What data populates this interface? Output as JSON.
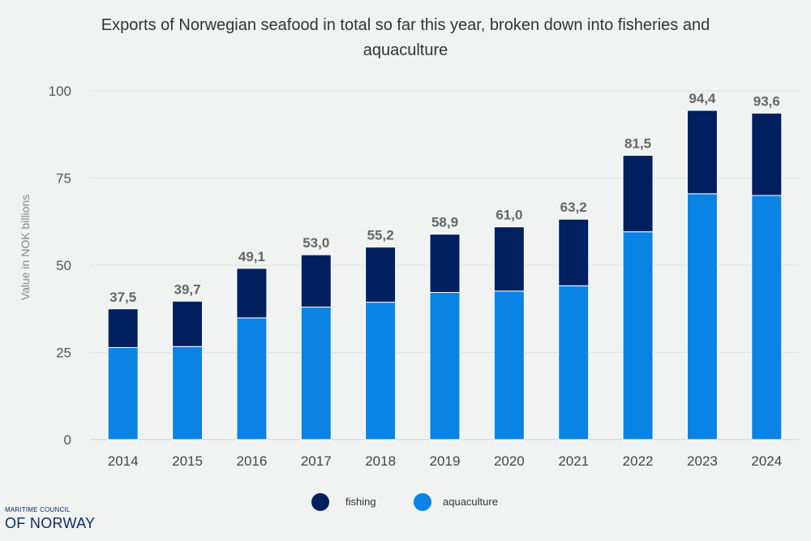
{
  "chart_data": {
    "type": "bar",
    "stacked": true,
    "title": "Exports of Norwegian seafood in total so far this year, broken down into fisheries and aquaculture",
    "ylabel": "Value in NOK billions",
    "xlabel": "",
    "ylim": [
      0,
      100
    ],
    "yticks": [
      0,
      25,
      50,
      75,
      100
    ],
    "grid": true,
    "legend": "bottom",
    "categories": [
      "2014",
      "2015",
      "2016",
      "2017",
      "2018",
      "2019",
      "2020",
      "2021",
      "2022",
      "2023",
      "2024"
    ],
    "series": [
      {
        "name": "aquaculture",
        "color": "#0a84e4",
        "values": [
          26.4,
          26.7,
          34.9,
          38.0,
          39.4,
          42.2,
          42.6,
          44.1,
          59.6,
          70.5,
          70.0
        ]
      },
      {
        "name": "fishing",
        "color": "#00205f",
        "values": [
          11.1,
          13.0,
          14.2,
          15.0,
          15.8,
          16.7,
          18.4,
          19.1,
          21.9,
          23.9,
          23.6
        ]
      }
    ],
    "total_labels": [
      "37,5",
      "39,7",
      "49,1",
      "53,0",
      "55,2",
      "58,9",
      "61,0",
      "63,2",
      "81,5",
      "94,4",
      "93,6"
    ]
  },
  "legend": {
    "fishing_label": "fishing",
    "aquaculture_label": "aquaculture"
  },
  "logo": {
    "line1": "MARITIME COUNCIL",
    "line2": "OF NORWAY"
  }
}
